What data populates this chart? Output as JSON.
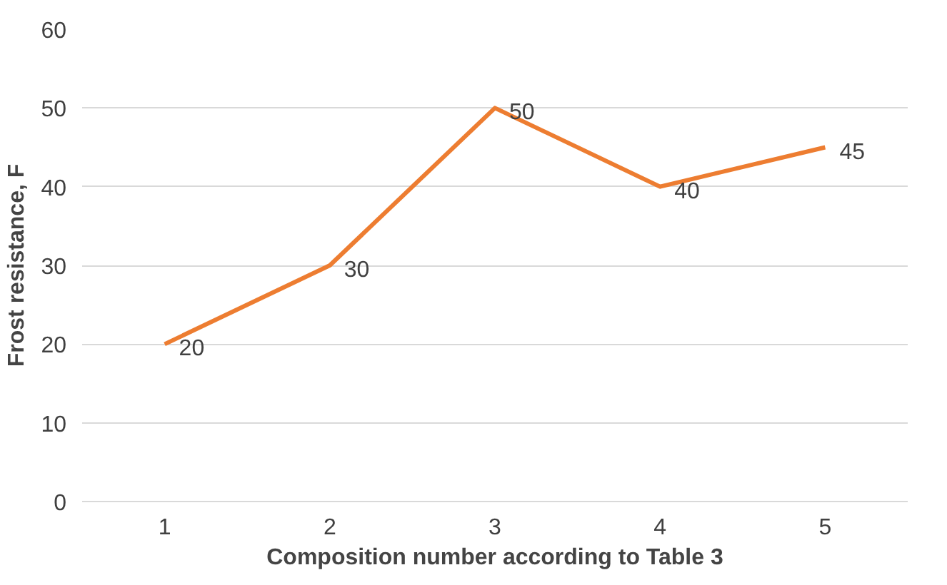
{
  "chart_data": {
    "type": "line",
    "xlabel": "Composition number according to Table 3",
    "ylabel": "Frost resistance, F",
    "categories": [
      "1",
      "2",
      "3",
      "4",
      "5"
    ],
    "series": [
      {
        "color": "#ed7d31",
        "values": [
          20,
          30,
          50,
          40,
          45
        ]
      }
    ],
    "ylim": [
      0,
      60
    ],
    "yticks": [
      0,
      10,
      20,
      30,
      40,
      50,
      60
    ],
    "grid": "y",
    "data_labels": true,
    "marker": "none",
    "line_style": "solid"
  }
}
